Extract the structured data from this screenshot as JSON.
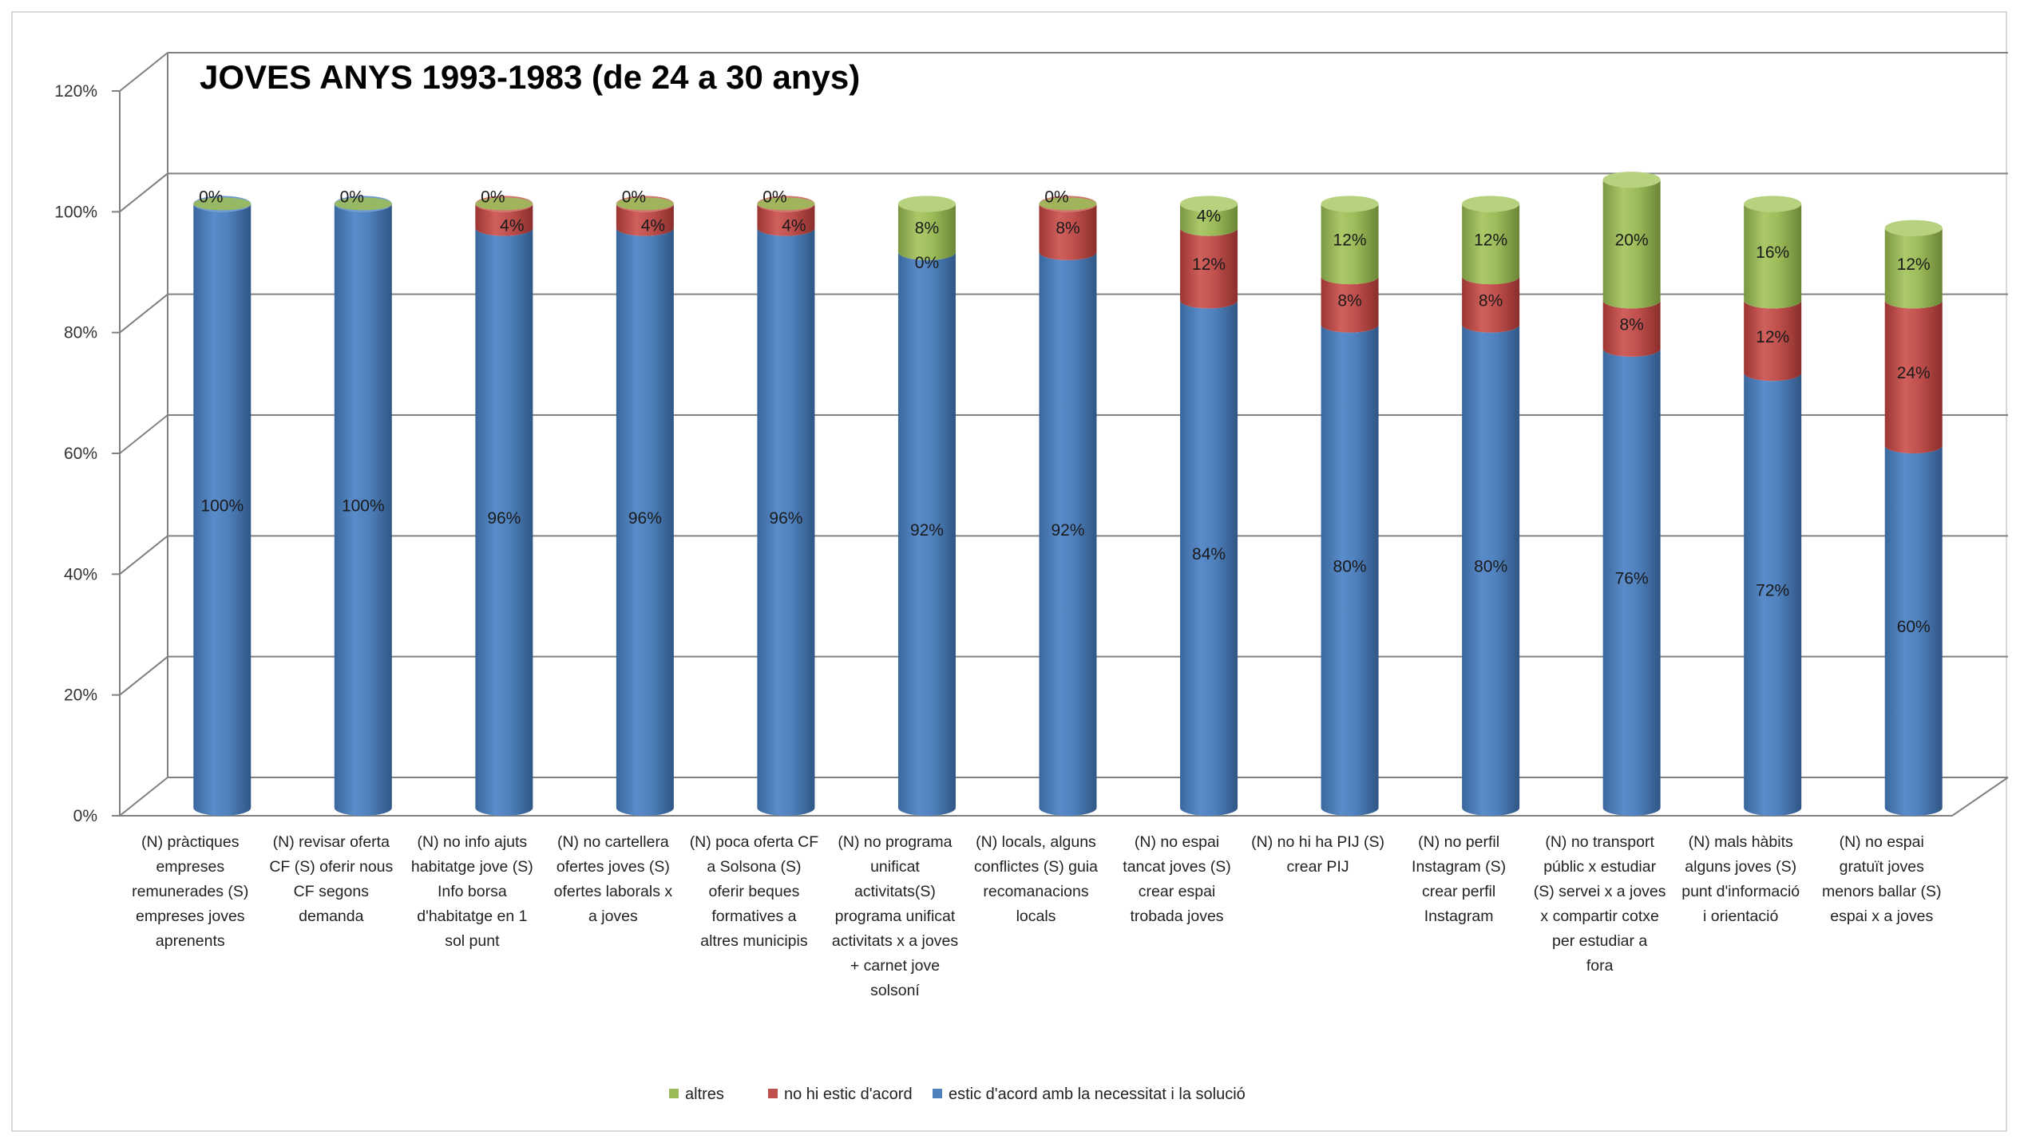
{
  "chart_data": {
    "type": "bar",
    "stacked": true,
    "title": "JOVES ANYS 1993-1983 (de 24 a 30 anys)",
    "xlabel": "",
    "ylabel": "",
    "ylim": [
      0,
      120
    ],
    "yticks": [
      "0%",
      "20%",
      "40%",
      "60%",
      "80%",
      "100%",
      "120%"
    ],
    "grid": true,
    "legend_position": "bottom",
    "categories": [
      [
        "(N) pràctiques",
        "empreses",
        "remunerades (S)",
        "empreses joves",
        "aprenents"
      ],
      [
        "(N) revisar oferta",
        "CF (S) oferir nous",
        "CF segons",
        "demanda"
      ],
      [
        "(N) no info ajuts",
        "habitatge jove (S)",
        "Info borsa",
        "d'habitatge en 1",
        "sol punt"
      ],
      [
        "(N) no cartellera",
        "ofertes joves (S)",
        "ofertes laborals x",
        "a joves"
      ],
      [
        "(N) poca oferta CF",
        "a Solsona (S)",
        "oferir beques",
        "formatives a",
        "altres municipis"
      ],
      [
        "(N) no programa",
        "unificat",
        "activitats(S)",
        "programa unificat",
        "activitats x a joves",
        "+ carnet jove",
        "solsoní"
      ],
      [
        "(N) locals, alguns",
        "conflictes (S) guia",
        "recomanacions",
        "locals"
      ],
      [
        "(N) no espai",
        "tancat joves (S)",
        "crear espai",
        "trobada joves"
      ],
      [
        "(N) no hi ha PIJ (S)",
        "crear PIJ"
      ],
      [
        "(N) no perfil",
        "Instagram (S)",
        "crear perfil",
        "Instagram"
      ],
      [
        "(N) no transport",
        "públic x estudiar",
        "(S) servei x a joves",
        "x compartir cotxe",
        "per estudiar a",
        "fora"
      ],
      [
        "(N) mals hàbits",
        "alguns joves (S)",
        "punt d'informació",
        "i orientació"
      ],
      [
        "(N) no espai",
        "gratuït joves",
        "menors ballar (S)",
        "espai x a joves"
      ]
    ],
    "series": [
      {
        "name": "estic d'acord amb la necessitat i la solució",
        "color": "#4f81bd",
        "values": [
          100,
          100,
          96,
          96,
          96,
          92,
          92,
          84,
          80,
          80,
          76,
          72,
          60
        ],
        "labels": [
          "100%",
          "100%",
          "96%",
          "96%",
          "96%",
          "92%",
          "92%",
          "84%",
          "80%",
          "80%",
          "76%",
          "72%",
          "60%"
        ]
      },
      {
        "name": "no hi estic d'acord",
        "color": "#c0504d",
        "values": [
          0,
          0,
          4,
          4,
          4,
          0,
          8,
          12,
          8,
          8,
          8,
          12,
          24
        ],
        "labels": [
          "",
          "",
          "4%",
          "4%",
          "4%",
          "0%",
          "8%",
          "12%",
          "8%",
          "8%",
          "8%",
          "12%",
          "24%"
        ]
      },
      {
        "name": "altres",
        "color": "#9bbb59",
        "values": [
          0,
          0,
          0,
          0,
          0,
          8,
          0,
          4,
          12,
          12,
          20,
          16,
          12
        ],
        "labels": [
          "0%",
          "0%",
          "0%",
          "0%",
          "0%",
          "8%",
          "0%",
          "4%",
          "12%",
          "12%",
          "20%",
          "16%",
          "12%"
        ]
      }
    ],
    "legend_order": [
      "altres",
      "no hi estic d'acord",
      "estic d'acord amb la necessitat i la solució"
    ]
  }
}
